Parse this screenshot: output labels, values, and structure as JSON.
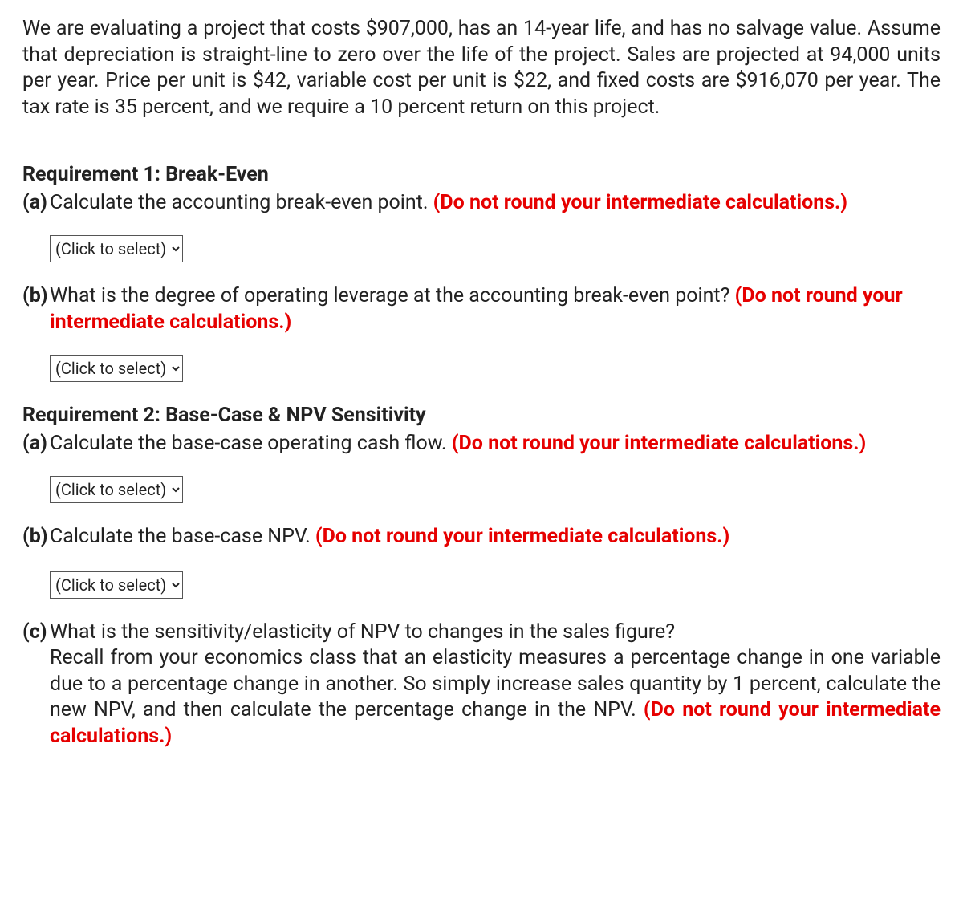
{
  "colors": {
    "text": "#222222",
    "highlight": "#e60000",
    "background": "#ffffff",
    "border": "#555555"
  },
  "intro": "We are evaluating a project that costs $907,000, has an 14-year life, and has no salvage value. Assume that depreciation is straight-line to zero over the life of the project. Sales are projected at 94,000 units per year. Price per unit is $42, variable cost per unit is $22, and fixed costs are $916,070 per year. The tax rate is 35 percent, and we require a 10 percent return on this project.",
  "req1": {
    "heading": "Requirement 1: Break-Even",
    "a": {
      "label": "(a)",
      "text_black": "Calculate the accounting break-even point. ",
      "text_red": "(Do not round your intermediate calculations.)"
    },
    "b": {
      "label": "(b)",
      "text_black": "What is the degree of operating leverage at the accounting break-even point? ",
      "text_red": "(Do not round your intermediate calculations.)"
    }
  },
  "req2": {
    "heading": "Requirement 2: Base-Case & NPV Sensitivity",
    "a": {
      "label": "(a)",
      "text_black": "Calculate the base-case operating cash flow. ",
      "text_red": "(Do not round your intermediate calculations.)"
    },
    "b": {
      "label": "(b)",
      "text_black": "Calculate the base-case NPV. ",
      "text_red": "(Do not round your intermediate calculations.)"
    },
    "c": {
      "label": "(c)",
      "line1": "What is the sensitivity/elasticity of NPV to changes in the sales figure?",
      "line2_black": "Recall from your economics class that an elasticity measures a percentage change in one variable due to a percentage change in another. So simply increase sales quantity by 1 percent, calculate the new NPV, and then calculate the percentage change in the NPV. ",
      "line2_red": "(Do not round your intermediate calculations.)"
    }
  },
  "select_placeholder": "(Click to select)"
}
